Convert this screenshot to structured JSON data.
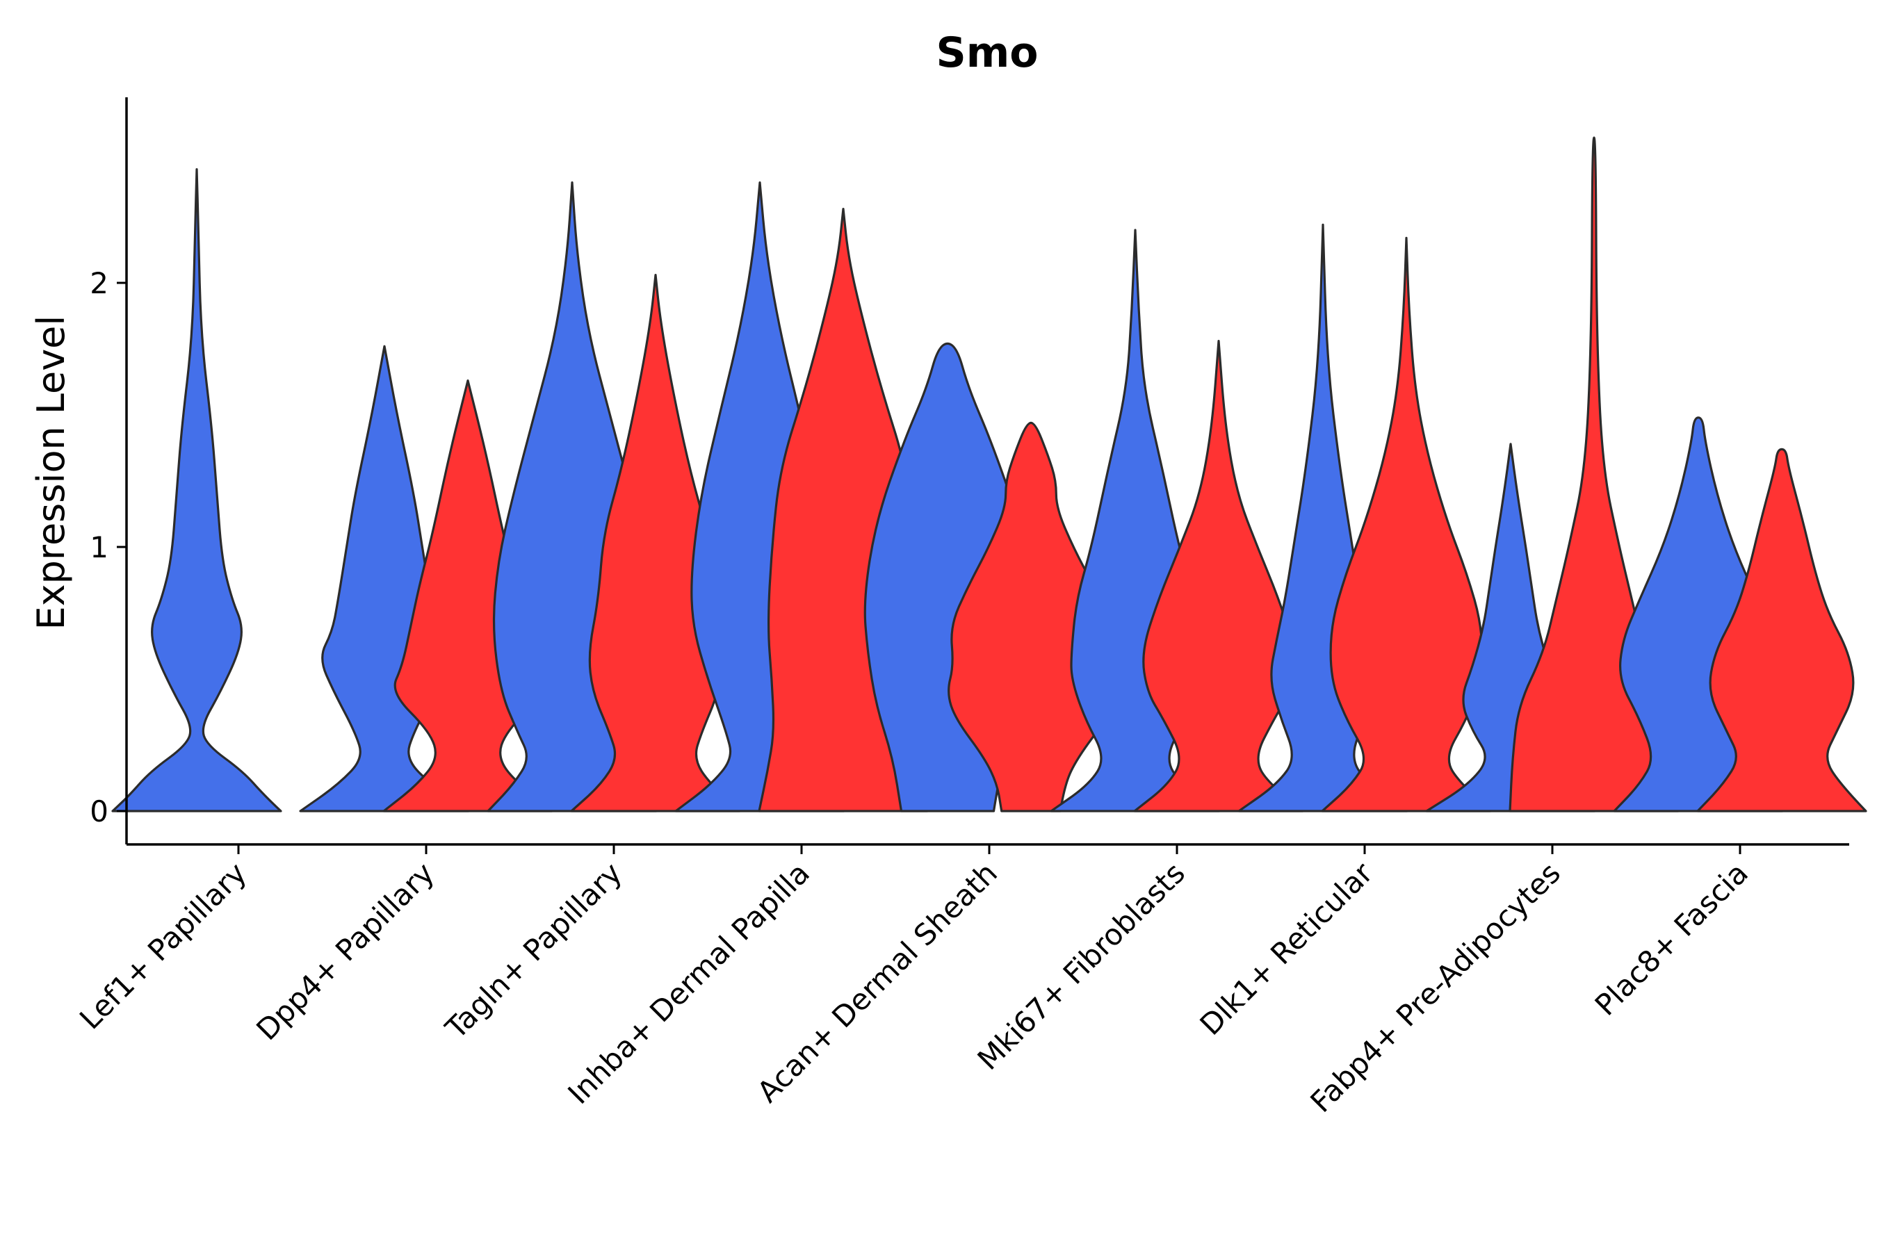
{
  "chart_data": {
    "type": "violin",
    "title": "Smo",
    "xlabel": "",
    "ylabel": "Expression Level",
    "ylim": [
      -0.13,
      2.7
    ],
    "yticks": [
      0,
      1,
      2
    ],
    "grid": false,
    "legend": "none",
    "colors": {
      "group1": "#4470EA",
      "group2": "#FF3333",
      "outline": "#2b2b2b"
    },
    "categories": [
      "Lef1+ Papillary",
      "Dpp4+ Papillary",
      "Tagln+ Papillary",
      "Inhba+ Dermal Papilla",
      "Acan+ Dermal Sheath",
      "Mki67+ Fibroblasts",
      "Dlk1+ Reticular",
      "Fabp4+ Pre-Adipocytes",
      "Plac8+ Fascia"
    ],
    "violins": [
      {
        "category": "Lef1+ Papillary",
        "group": "group1",
        "max": 2.43,
        "profile": [
          [
            0,
            1.0
          ],
          [
            0.06,
            0.8
          ],
          [
            0.15,
            0.55
          ],
          [
            0.25,
            0.12
          ],
          [
            0.32,
            0.05
          ],
          [
            0.45,
            0.28
          ],
          [
            0.6,
            0.5
          ],
          [
            0.7,
            0.55
          ],
          [
            0.8,
            0.42
          ],
          [
            0.95,
            0.3
          ],
          [
            1.2,
            0.24
          ],
          [
            1.45,
            0.18
          ],
          [
            1.8,
            0.05
          ],
          [
            2.2,
            0.02
          ],
          [
            2.43,
            0.0
          ]
        ]
      },
      {
        "category": "Dpp4+ Papillary",
        "group": "group1",
        "max": 1.76,
        "profile": [
          [
            0,
            1.0
          ],
          [
            0.1,
            0.55
          ],
          [
            0.2,
            0.25
          ],
          [
            0.3,
            0.35
          ],
          [
            0.45,
            0.6
          ],
          [
            0.58,
            0.78
          ],
          [
            0.68,
            0.62
          ],
          [
            0.8,
            0.55
          ],
          [
            1.0,
            0.45
          ],
          [
            1.2,
            0.35
          ],
          [
            1.5,
            0.15
          ],
          [
            1.76,
            0.0
          ]
        ]
      },
      {
        "category": "Dpp4+ Papillary",
        "group": "group2",
        "max": 1.63,
        "profile": [
          [
            0,
            1.0
          ],
          [
            0.1,
            0.6
          ],
          [
            0.2,
            0.35
          ],
          [
            0.3,
            0.45
          ],
          [
            0.45,
            0.92
          ],
          [
            0.55,
            0.78
          ],
          [
            0.7,
            0.68
          ],
          [
            0.85,
            0.58
          ],
          [
            1.05,
            0.42
          ],
          [
            1.35,
            0.22
          ],
          [
            1.63,
            0.0
          ]
        ]
      },
      {
        "category": "Tagln+ Papillary",
        "group": "group1",
        "max": 2.38,
        "profile": [
          [
            0,
            1.0
          ],
          [
            0.1,
            0.7
          ],
          [
            0.2,
            0.5
          ],
          [
            0.3,
            0.65
          ],
          [
            0.45,
            0.85
          ],
          [
            0.7,
            0.95
          ],
          [
            0.95,
            0.88
          ],
          [
            1.2,
            0.7
          ],
          [
            1.5,
            0.45
          ],
          [
            1.8,
            0.2
          ],
          [
            2.1,
            0.06
          ],
          [
            2.38,
            0.0
          ]
        ]
      },
      {
        "category": "Tagln+ Papillary",
        "group": "group2",
        "max": 2.03,
        "profile": [
          [
            0,
            1.0
          ],
          [
            0.1,
            0.65
          ],
          [
            0.2,
            0.45
          ],
          [
            0.3,
            0.55
          ],
          [
            0.45,
            0.75
          ],
          [
            0.6,
            0.8
          ],
          [
            0.8,
            0.68
          ],
          [
            1.05,
            0.62
          ],
          [
            1.3,
            0.4
          ],
          [
            1.6,
            0.2
          ],
          [
            1.85,
            0.06
          ],
          [
            2.03,
            0.0
          ]
        ]
      },
      {
        "category": "Inhba+ Dermal Papilla",
        "group": "group1",
        "max": 2.38,
        "profile": [
          [
            0,
            1.0
          ],
          [
            0.1,
            0.58
          ],
          [
            0.2,
            0.32
          ],
          [
            0.3,
            0.4
          ],
          [
            0.5,
            0.62
          ],
          [
            0.7,
            0.8
          ],
          [
            0.9,
            0.82
          ],
          [
            1.2,
            0.7
          ],
          [
            1.5,
            0.48
          ],
          [
            1.8,
            0.25
          ],
          [
            2.1,
            0.08
          ],
          [
            2.38,
            0.0
          ]
        ]
      },
      {
        "category": "Inhba+ Dermal Papilla",
        "group": "group2",
        "max": 2.28,
        "profile": [
          [
            0,
            1.0
          ],
          [
            0.15,
            0.9
          ],
          [
            0.3,
            0.82
          ],
          [
            0.5,
            0.85
          ],
          [
            0.7,
            0.9
          ],
          [
            1.0,
            0.85
          ],
          [
            1.3,
            0.75
          ],
          [
            1.6,
            0.45
          ],
          [
            1.9,
            0.2
          ],
          [
            2.1,
            0.06
          ],
          [
            2.28,
            0.0
          ]
        ]
      },
      {
        "category": "Acan+ Dermal Sheath",
        "group": "group1",
        "max": 1.77,
        "profile": [
          [
            0,
            0.55
          ],
          [
            0.2,
            0.65
          ],
          [
            0.4,
            0.85
          ],
          [
            0.6,
            0.95
          ],
          [
            0.8,
            1.0
          ],
          [
            1.1,
            0.85
          ],
          [
            1.4,
            0.52
          ],
          [
            1.6,
            0.25
          ],
          [
            1.77,
            0.1
          ]
        ]
      },
      {
        "category": "Acan+ Dermal Sheath",
        "group": "group2",
        "max": 1.47,
        "profile": [
          [
            0,
            0.35
          ],
          [
            0.1,
            0.4
          ],
          [
            0.2,
            0.55
          ],
          [
            0.35,
            0.9
          ],
          [
            0.45,
            1.0
          ],
          [
            0.55,
            0.92
          ],
          [
            0.7,
            0.96
          ],
          [
            0.85,
            0.75
          ],
          [
            1.0,
            0.5
          ],
          [
            1.15,
            0.3
          ],
          [
            1.25,
            0.3
          ],
          [
            1.35,
            0.2
          ],
          [
            1.47,
            0.05
          ]
        ]
      },
      {
        "category": "Mki67+ Fibroblasts",
        "group": "group1",
        "max": 2.2,
        "profile": [
          [
            0,
            1.0
          ],
          [
            0.1,
            0.55
          ],
          [
            0.2,
            0.35
          ],
          [
            0.35,
            0.6
          ],
          [
            0.5,
            0.76
          ],
          [
            0.6,
            0.76
          ],
          [
            0.8,
            0.7
          ],
          [
            1.0,
            0.52
          ],
          [
            1.3,
            0.32
          ],
          [
            1.6,
            0.1
          ],
          [
            1.9,
            0.04
          ],
          [
            2.2,
            0.0
          ]
        ]
      },
      {
        "category": "Mki67+ Fibroblasts",
        "group": "group2",
        "max": 1.78,
        "profile": [
          [
            0,
            1.0
          ],
          [
            0.1,
            0.6
          ],
          [
            0.2,
            0.42
          ],
          [
            0.35,
            0.66
          ],
          [
            0.45,
            0.85
          ],
          [
            0.6,
            0.92
          ],
          [
            0.8,
            0.72
          ],
          [
            1.0,
            0.46
          ],
          [
            1.2,
            0.22
          ],
          [
            1.45,
            0.08
          ],
          [
            1.78,
            0.0
          ]
        ]
      },
      {
        "category": "Dlk1+ Reticular",
        "group": "group1",
        "max": 2.22,
        "profile": [
          [
            0,
            1.0
          ],
          [
            0.1,
            0.55
          ],
          [
            0.2,
            0.32
          ],
          [
            0.35,
            0.5
          ],
          [
            0.5,
            0.64
          ],
          [
            0.65,
            0.55
          ],
          [
            0.8,
            0.45
          ],
          [
            1.0,
            0.35
          ],
          [
            1.3,
            0.2
          ],
          [
            1.7,
            0.05
          ],
          [
            2.22,
            0.0
          ]
        ]
      },
      {
        "category": "Dlk1+ Reticular",
        "group": "group2",
        "max": 2.17,
        "profile": [
          [
            0,
            1.0
          ],
          [
            0.1,
            0.65
          ],
          [
            0.2,
            0.45
          ],
          [
            0.35,
            0.72
          ],
          [
            0.5,
            0.9
          ],
          [
            0.7,
            0.9
          ],
          [
            0.9,
            0.72
          ],
          [
            1.1,
            0.48
          ],
          [
            1.35,
            0.25
          ],
          [
            1.6,
            0.1
          ],
          [
            1.9,
            0.03
          ],
          [
            2.17,
            0.0
          ]
        ]
      },
      {
        "category": "Fabp4+ Pre-Adipocytes",
        "group": "group1",
        "max": 1.39,
        "profile": [
          [
            0,
            1.0
          ],
          [
            0.1,
            0.5
          ],
          [
            0.2,
            0.25
          ],
          [
            0.3,
            0.45
          ],
          [
            0.42,
            0.6
          ],
          [
            0.55,
            0.45
          ],
          [
            0.7,
            0.32
          ],
          [
            0.85,
            0.25
          ],
          [
            1.0,
            0.18
          ],
          [
            1.2,
            0.08
          ],
          [
            1.39,
            0.0
          ]
        ]
      },
      {
        "category": "Fabp4+ Pre-Adipocytes",
        "group": "group2",
        "max": 2.55,
        "profile": [
          [
            0,
            1.0
          ],
          [
            0.2,
            0.97
          ],
          [
            0.4,
            0.9
          ],
          [
            0.6,
            0.6
          ],
          [
            0.8,
            0.45
          ],
          [
            1.0,
            0.3
          ],
          [
            1.3,
            0.1
          ],
          [
            1.8,
            0.03
          ],
          [
            2.55,
            0.02
          ]
        ]
      },
      {
        "category": "Plac8+ Fascia",
        "group": "group1",
        "max": 1.49,
        "profile": [
          [
            0,
            1.0
          ],
          [
            0.1,
            0.7
          ],
          [
            0.2,
            0.52
          ],
          [
            0.35,
            0.7
          ],
          [
            0.5,
            0.95
          ],
          [
            0.65,
            0.9
          ],
          [
            0.8,
            0.7
          ],
          [
            1.0,
            0.42
          ],
          [
            1.2,
            0.22
          ],
          [
            1.4,
            0.08
          ],
          [
            1.49,
            0.05
          ]
        ]
      },
      {
        "category": "Plac8+ Fascia",
        "group": "group2",
        "max": 1.37,
        "profile": [
          [
            0,
            1.0
          ],
          [
            0.1,
            0.7
          ],
          [
            0.2,
            0.5
          ],
          [
            0.3,
            0.65
          ],
          [
            0.45,
            0.88
          ],
          [
            0.6,
            0.8
          ],
          [
            0.75,
            0.55
          ],
          [
            0.9,
            0.4
          ],
          [
            1.1,
            0.25
          ],
          [
            1.3,
            0.08
          ],
          [
            1.37,
            0.05
          ]
        ]
      }
    ]
  }
}
